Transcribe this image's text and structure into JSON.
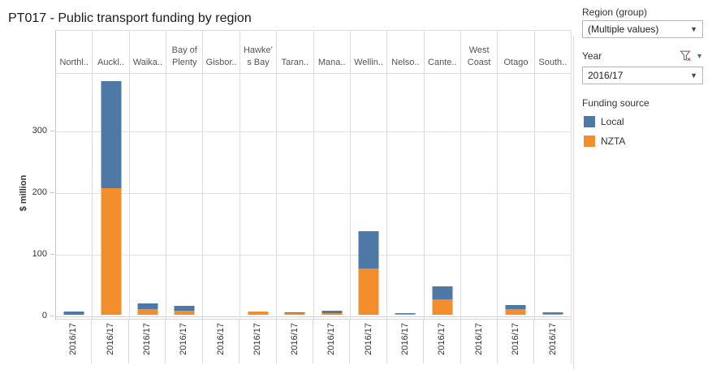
{
  "title": "PT017 - Public transport funding by region",
  "chart_data": {
    "type": "bar",
    "stacked": true,
    "orientation": "vertical",
    "title": "PT017 - Public transport funding by region",
    "categories": [
      "Northland",
      "Auckland",
      "Waikato",
      "Bay of Plenty",
      "Gisborne",
      "Hawke's Bay",
      "Taranaki",
      "Manawatu",
      "Wellington",
      "Nelson",
      "Canterbury",
      "West Coast",
      "Otago",
      "Southland"
    ],
    "column_headers": [
      [
        "Northl.."
      ],
      [
        "Auckl.."
      ],
      [
        "Waika.."
      ],
      [
        "Bay of",
        "Plenty"
      ],
      [
        "Gisbor.."
      ],
      [
        "Hawke’",
        "s Bay"
      ],
      [
        "Taran.."
      ],
      [
        "Mana.."
      ],
      [
        "Wellin.."
      ],
      [
        "Nelso.."
      ],
      [
        "Cante.."
      ],
      [
        "West",
        "Coast"
      ],
      [
        "Otago"
      ],
      [
        "South.."
      ]
    ],
    "x_tick_label": "2016/17",
    "series": [
      {
        "name": "NZTA",
        "color": "#f28e2b",
        "values": [
          0,
          205,
          9,
          6,
          0,
          4.5,
          2,
          2,
          74,
          0.5,
          24,
          0,
          9,
          0.5
        ]
      },
      {
        "name": "Local",
        "color": "#4e79a7",
        "values": [
          4,
          175,
          9,
          8,
          0,
          0.5,
          1.5,
          4,
          62,
          1.5,
          21,
          0,
          6,
          3
        ]
      }
    ],
    "stack_order_bottom_to_top": [
      "NZTA",
      "Local"
    ],
    "ylabel": "$ million",
    "yticks": [
      0,
      100,
      200,
      300
    ],
    "ylim": [
      0,
      463
    ],
    "grid": "horizontal",
    "legend_position": "right"
  },
  "filters": {
    "region": {
      "label": "Region (group)",
      "value": "(Multiple values)"
    },
    "year": {
      "label": "Year",
      "value": "2016/17"
    }
  },
  "legend": {
    "title": "Funding source",
    "items": [
      {
        "label": "Local",
        "color": "#4e79a7"
      },
      {
        "label": "NZTA",
        "color": "#f28e2b"
      }
    ]
  },
  "icons": {
    "dropdown_caret": "▼",
    "filter_caret": "▼",
    "filter_x": "×"
  }
}
